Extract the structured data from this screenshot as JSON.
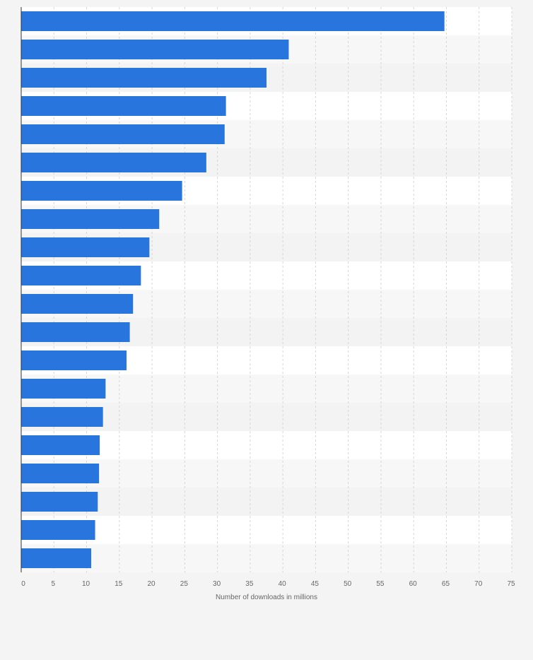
{
  "chart_data": {
    "type": "bar",
    "orientation": "horizontal",
    "categories": [
      "",
      "",
      "",
      "",
      "",
      "",
      "",
      "",
      "",
      "",
      "",
      "",
      "",
      "",
      "",
      "",
      "",
      "",
      "",
      ""
    ],
    "values": [
      64.7,
      40.9,
      37.5,
      31.3,
      31.1,
      28.3,
      24.6,
      21.1,
      19.6,
      18.3,
      17.1,
      16.6,
      16.1,
      12.9,
      12.5,
      12.0,
      11.9,
      11.7,
      11.3,
      10.7
    ],
    "xlim": [
      0,
      75
    ],
    "xticks": [
      0,
      5,
      10,
      15,
      20,
      25,
      30,
      35,
      40,
      45,
      50,
      55,
      60,
      65,
      70,
      75
    ],
    "xlabel": "Number of downloads in millions",
    "ylabel": "",
    "title": "",
    "grid": true,
    "legend": "none",
    "bar_color": "#2876dd",
    "row_band_colors": [
      "#ffffff",
      "#f7f7f7",
      "#f3f3f3"
    ],
    "grid_color": "#d6d6d6",
    "axis_color": "#333333",
    "background": "#f4f4f4"
  }
}
